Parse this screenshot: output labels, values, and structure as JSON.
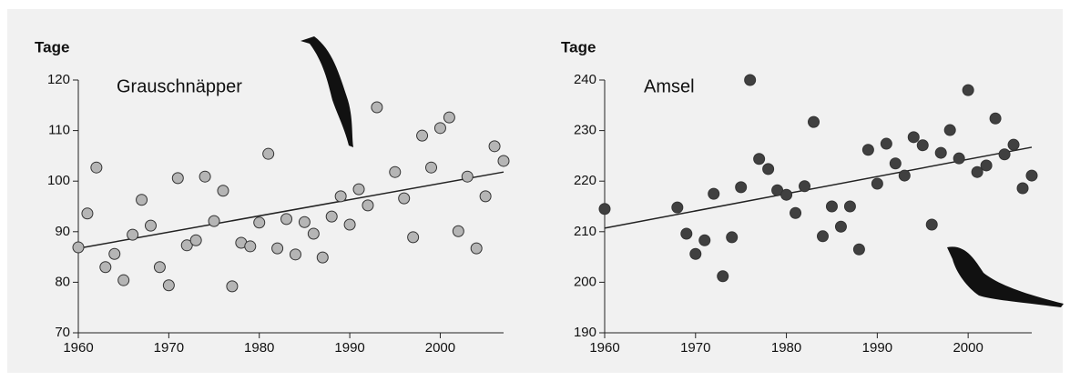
{
  "chart_data": [
    {
      "type": "scatter",
      "title": "Grauschnäpper",
      "y_label": "Tage",
      "color": "#b5b5b5",
      "x": [
        1960,
        1961,
        1962,
        1963,
        1964,
        1965,
        1966,
        1967,
        1968,
        1969,
        1970,
        1971,
        1972,
        1973,
        1974,
        1975,
        1976,
        1977,
        1978,
        1979,
        1980,
        1981,
        1982,
        1983,
        1984,
        1985,
        1986,
        1987,
        1988,
        1989,
        1990,
        1991,
        1992,
        1993,
        1995,
        1996,
        1997,
        1998,
        1999,
        2000,
        2001,
        2002,
        2003,
        2004,
        2005,
        2006,
        2007
      ],
      "values": [
        86.9,
        93.6,
        102.7,
        83,
        85.6,
        80.4,
        89.4,
        96.3,
        91.2,
        83,
        79.4,
        100.6,
        87.3,
        88.3,
        100.9,
        92.1,
        98.1,
        79.2,
        87.8,
        87.1,
        91.8,
        105.4,
        86.7,
        92.5,
        85.5,
        91.9,
        89.6,
        84.9,
        93,
        97,
        91.4,
        98.4,
        95.2,
        114.6,
        101.8,
        96.6,
        88.9,
        109,
        102.7,
        110.5,
        112.6,
        90.1,
        100.9,
        86.7,
        97,
        106.9,
        104
      ],
      "trend": {
        "x": [
          1960,
          2007
        ],
        "values": [
          86.7,
          101.8
        ]
      },
      "xlim": [
        1960,
        2007
      ],
      "xticks": [
        1960,
        1970,
        1980,
        1990,
        2000
      ],
      "ylim": [
        70,
        120
      ],
      "yticks": [
        70,
        80,
        90,
        100,
        110,
        120
      ]
    },
    {
      "type": "scatter",
      "title": "Amsel",
      "y_label": "Tage",
      "color": "#404040",
      "x": [
        1960,
        1968,
        1969,
        1970,
        1971,
        1972,
        1973,
        1974,
        1975,
        1976,
        1977,
        1978,
        1979,
        1980,
        1981,
        1982,
        1983,
        1984,
        1985,
        1986,
        1987,
        1988,
        1989,
        1990,
        1991,
        1992,
        1993,
        1994,
        1995,
        1996,
        1997,
        1998,
        1999,
        2000,
        2001,
        2002,
        2003,
        2004,
        2005,
        2006,
        2007
      ],
      "values": [
        214.5,
        214.8,
        209.6,
        205.6,
        208.3,
        217.5,
        201.2,
        208.9,
        218.8,
        240,
        224.4,
        222.4,
        218.2,
        217.3,
        213.7,
        219,
        231.7,
        209.1,
        215,
        211,
        215,
        206.5,
        226.2,
        219.5,
        227.4,
        223.5,
        221.1,
        228.7,
        227.1,
        211.4,
        225.6,
        230.1,
        224.5,
        238,
        221.8,
        223.1,
        232.4,
        225.3,
        227.2,
        218.6,
        221.1
      ],
      "trend": {
        "x": [
          1960,
          2007
        ],
        "values": [
          210.7,
          226.7
        ]
      },
      "xlim": [
        1960,
        2007
      ],
      "xticks": [
        1960,
        1970,
        1980,
        1990,
        2000
      ],
      "ylim": [
        190,
        240
      ],
      "yticks": [
        190,
        200,
        210,
        220,
        230,
        240
      ]
    }
  ]
}
